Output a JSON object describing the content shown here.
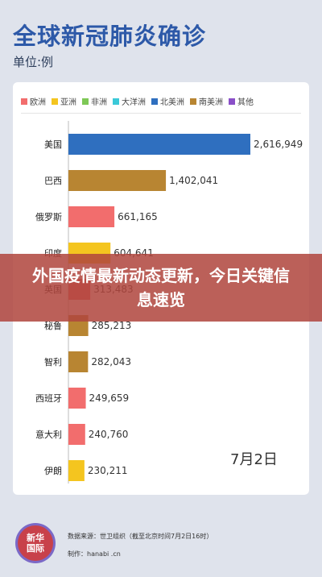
{
  "header": {
    "title": "全球新冠肺炎确诊",
    "unit": "单位:例"
  },
  "legend": [
    {
      "label": "欧洲",
      "color": "#f26d6d"
    },
    {
      "label": "亚洲",
      "color": "#f4c51f"
    },
    {
      "label": "非洲",
      "color": "#7ec856"
    },
    {
      "label": "大洋洲",
      "color": "#3bc9d8"
    },
    {
      "label": "北美洲",
      "color": "#2f6fbf"
    },
    {
      "label": "南美洲",
      "color": "#b88532"
    },
    {
      "label": "其他",
      "color": "#8a4fc8"
    }
  ],
  "date_label": "7月2日",
  "overlay": {
    "headline": "外国疫情最新动态更新，今日关键信息速览"
  },
  "footer": {
    "logo_text": "新华国际",
    "source": "数据来源：世卫组织（截至北京时间7月2日16时）",
    "maker": "制作：hanabi .cn"
  },
  "chart_data": {
    "type": "bar",
    "orientation": "horizontal",
    "categories": [
      "美国",
      "巴西",
      "俄罗斯",
      "印度",
      "英国",
      "秘鲁",
      "智利",
      "西班牙",
      "意大利",
      "伊朗"
    ],
    "values": [
      2616949,
      1402041,
      661165,
      604641,
      313483,
      285213,
      282043,
      249659,
      240760,
      230211
    ],
    "value_labels": [
      "2,616,949",
      "1,402,041",
      "661,165",
      "604,641",
      "313,483",
      "285,213",
      "282,043",
      "249,659",
      "240,760",
      "230,211"
    ],
    "region": [
      "北美洲",
      "南美洲",
      "欧洲",
      "亚洲",
      "欧洲",
      "南美洲",
      "南美洲",
      "欧洲",
      "欧洲",
      "亚洲"
    ],
    "xlim": [
      0,
      2616949
    ],
    "grid": false,
    "legend_position": "top"
  }
}
